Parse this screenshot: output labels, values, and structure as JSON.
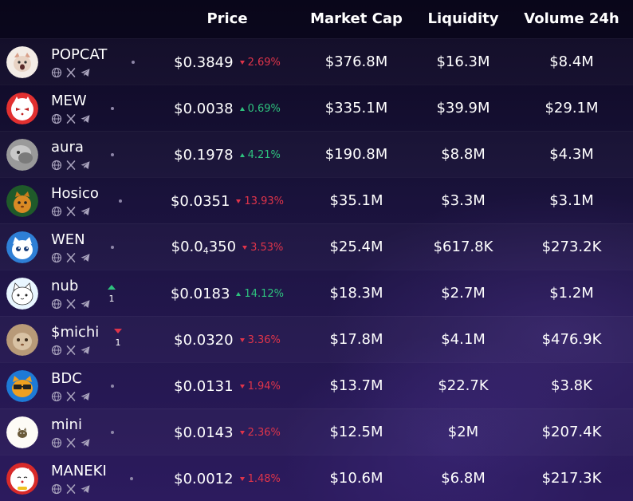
{
  "header": {
    "price": "Price",
    "market_cap": "Market Cap",
    "liquidity": "Liquidity",
    "volume": "Volume 24h"
  },
  "colors": {
    "up": "#2ec27e",
    "down": "#e0344a"
  },
  "social_icons": [
    "globe-icon",
    "x-icon",
    "telegram-icon"
  ],
  "rows": [
    {
      "name": "POPCAT",
      "avatar_icon": "popcat-avatar",
      "price": "$0.3849",
      "change": "2.69%",
      "dir": "down",
      "market_cap": "$376.8M",
      "liquidity": "$16.3M",
      "volume": "$8.4M"
    },
    {
      "name": "MEW",
      "avatar_icon": "mew-avatar",
      "price": "$0.0038",
      "change": "0.69%",
      "dir": "up",
      "market_cap": "$335.1M",
      "liquidity": "$39.9M",
      "volume": "$29.1M"
    },
    {
      "name": "aura",
      "avatar_icon": "aura-avatar",
      "price": "$0.1978",
      "change": "4.21%",
      "dir": "up",
      "market_cap": "$190.8M",
      "liquidity": "$8.8M",
      "volume": "$4.3M"
    },
    {
      "name": "Hosico",
      "avatar_icon": "hosico-avatar",
      "price": "$0.0351",
      "change": "13.93%",
      "dir": "down",
      "market_cap": "$35.1M",
      "liquidity": "$3.3M",
      "volume": "$3.1M"
    },
    {
      "name": "WEN",
      "avatar_icon": "wen-avatar",
      "price_main": "$0.0",
      "price_sub": "4",
      "price_tail": "350",
      "change": "3.53%",
      "dir": "down",
      "market_cap": "$25.4M",
      "liquidity": "$617.8K",
      "volume": "$273.2K"
    },
    {
      "name": "nub",
      "avatar_icon": "nub-avatar",
      "rank_dir": "up",
      "rank": "1",
      "price": "$0.0183",
      "change": "14.12%",
      "dir": "up",
      "market_cap": "$18.3M",
      "liquidity": "$2.7M",
      "volume": "$1.2M"
    },
    {
      "name": "$michi",
      "avatar_icon": "michi-avatar",
      "rank_dir": "down",
      "rank": "1",
      "price": "$0.0320",
      "change": "3.36%",
      "dir": "down",
      "market_cap": "$17.8M",
      "liquidity": "$4.1M",
      "volume": "$476.9K"
    },
    {
      "name": "BDC",
      "avatar_icon": "bdc-avatar",
      "price": "$0.0131",
      "change": "1.94%",
      "dir": "down",
      "market_cap": "$13.7M",
      "liquidity": "$22.7K",
      "volume": "$3.8K"
    },
    {
      "name": "mini",
      "avatar_icon": "mini-avatar",
      "price": "$0.0143",
      "change": "2.36%",
      "dir": "down",
      "market_cap": "$12.5M",
      "liquidity": "$2M",
      "volume": "$207.4K"
    },
    {
      "name": "MANEKI",
      "avatar_icon": "maneki-avatar",
      "price": "$0.0012",
      "change": "1.48%",
      "dir": "down",
      "market_cap": "$10.6M",
      "liquidity": "$6.8M",
      "volume": "$217.3K"
    }
  ]
}
